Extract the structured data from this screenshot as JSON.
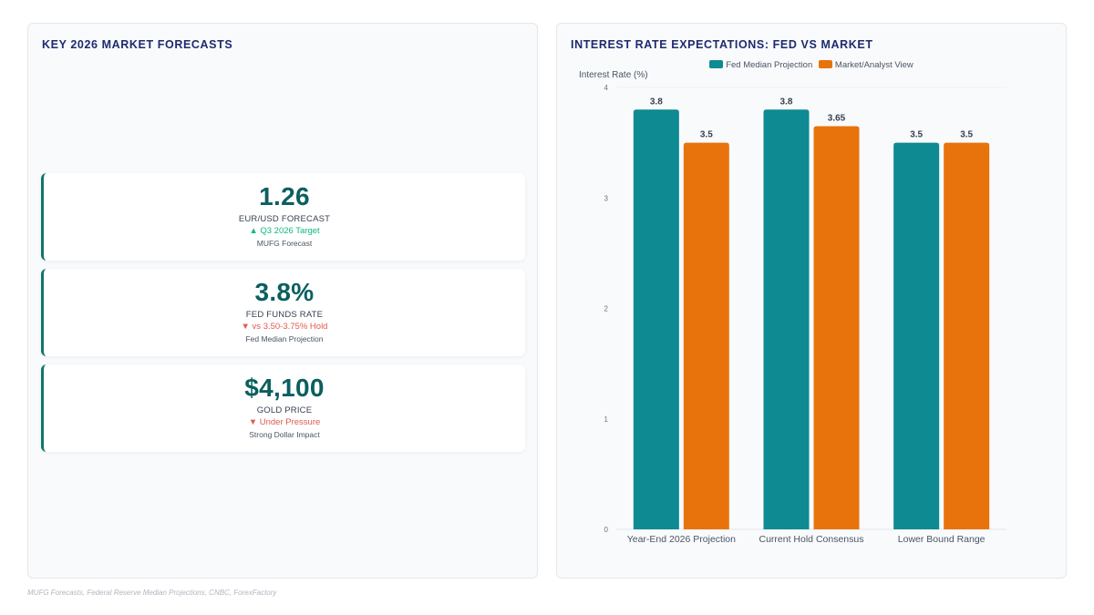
{
  "left_panel": {
    "title": "KEY 2026 MARKET FORECASTS",
    "cards": [
      {
        "value": "1.26",
        "label": "EUR/USD FORECAST",
        "change": "▲ Q3 2026 Target",
        "direction": "up",
        "source": "MUFG Forecast"
      },
      {
        "value": "3.8%",
        "label": "FED FUNDS RATE",
        "change": "▼ vs 3.50-3.75% Hold",
        "direction": "down",
        "source": "Fed Median Projection"
      },
      {
        "value": "$4,100",
        "label": "GOLD PRICE",
        "change": "▼ Under Pressure",
        "direction": "down",
        "source": "Strong Dollar Impact"
      }
    ]
  },
  "right_panel": {
    "title": "INTEREST RATE EXPECTATIONS: FED VS MARKET"
  },
  "chart_data": {
    "type": "bar",
    "title": "INTEREST RATE EXPECTATIONS: FED VS MARKET",
    "xlabel": "",
    "ylabel": "Interest Rate (%)",
    "ylim": [
      0,
      4
    ],
    "yticks": [
      0,
      1,
      2,
      3,
      4
    ],
    "grid": false,
    "legend_position": "top-center",
    "categories": [
      "Year-End 2026 Projection",
      "Current Hold Consensus",
      "Lower Bound Range"
    ],
    "series": [
      {
        "name": "Fed Median Projection",
        "color": "#0e8a92",
        "values": [
          3.8,
          3.8,
          3.5
        ]
      },
      {
        "name": "Market/Analyst View",
        "color": "#e8730c",
        "values": [
          3.5,
          3.65,
          3.5
        ]
      }
    ],
    "data_labels": [
      [
        "3.8",
        "3.8",
        "3.5"
      ],
      [
        "3.5",
        "3.65",
        "3.5"
      ]
    ]
  },
  "footer": {
    "sources": "MUFG Forecasts, Federal Reserve Median Projections, CNBC, ForexFactory"
  }
}
